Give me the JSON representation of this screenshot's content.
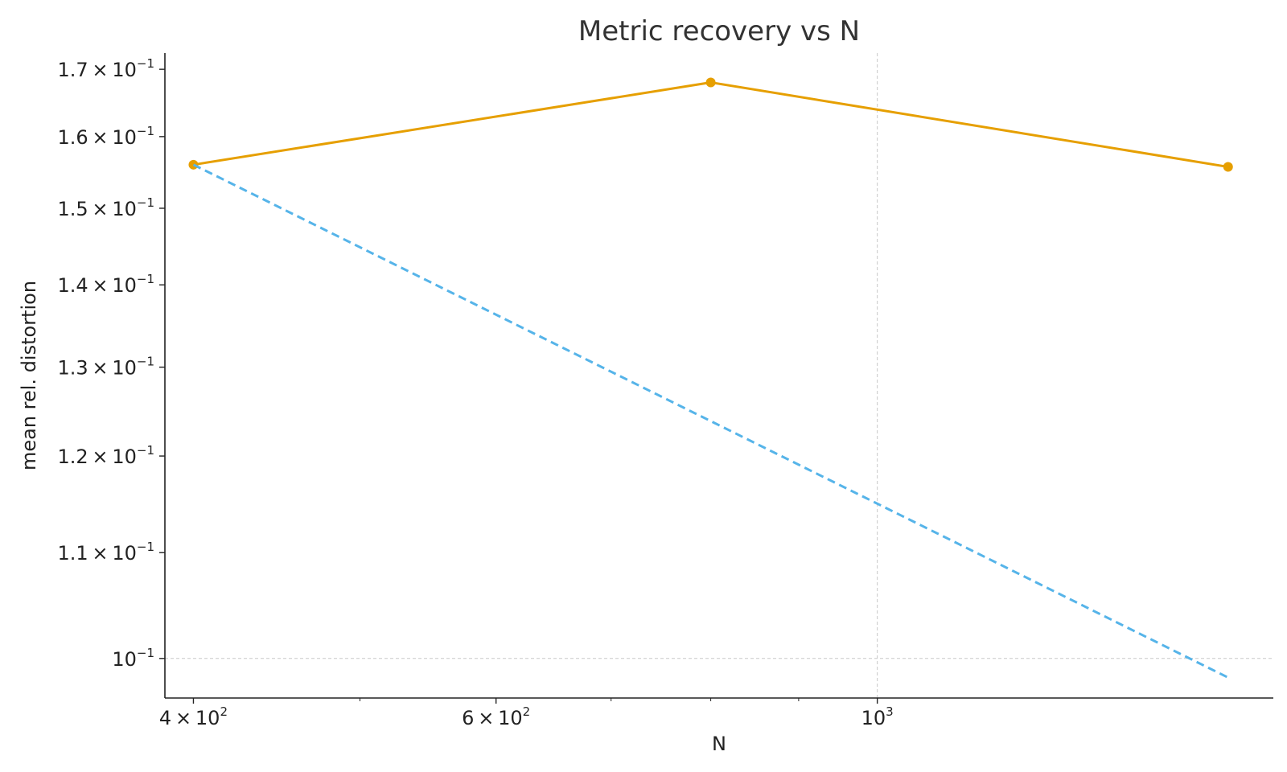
{
  "chart_data": {
    "type": "line",
    "title": "Metric recovery vs N",
    "xlabel": "N",
    "ylabel": "mean rel. distortion",
    "xscale": "log",
    "yscale": "log",
    "xlim": [
      385,
      1700
    ],
    "ylim": [
      0.0965,
      0.1725
    ],
    "grid": "major only, dashed",
    "legend": "none",
    "x_ticks": [
      {
        "value": 400,
        "mantissa": "4",
        "base": "10",
        "exp": "2"
      },
      {
        "value": 600,
        "mantissa": "6",
        "base": "10",
        "exp": "2"
      },
      {
        "value": 1000,
        "mantissa": "",
        "base": "10",
        "exp": "3"
      }
    ],
    "y_ticks": [
      {
        "value": 0.17,
        "mantissa": "1.7",
        "base": "10",
        "exp": "−1"
      },
      {
        "value": 0.16,
        "mantissa": "1.6",
        "base": "10",
        "exp": "−1"
      },
      {
        "value": 0.15,
        "mantissa": "1.5",
        "base": "10",
        "exp": "−1"
      },
      {
        "value": 0.14,
        "mantissa": "1.4",
        "base": "10",
        "exp": "−1"
      },
      {
        "value": 0.13,
        "mantissa": "1.3",
        "base": "10",
        "exp": "−1"
      },
      {
        "value": 0.12,
        "mantissa": "1.2",
        "base": "10",
        "exp": "−1"
      },
      {
        "value": 0.11,
        "mantissa": "1.1",
        "base": "10",
        "exp": "−1"
      },
      {
        "value": 0.1,
        "mantissa": "",
        "base": "10",
        "exp": "−1"
      }
    ],
    "series": [
      {
        "x": [
          400,
          800,
          1600
        ],
        "y": [
          0.156,
          0.168,
          0.1557
        ],
        "color": "#E69F00",
        "style": "solid",
        "markers": true
      },
      {
        "x": [
          400,
          1600
        ],
        "y": [
          0.156,
          0.0983
        ],
        "color": "#56B4E9",
        "style": "dashed",
        "markers": false
      }
    ]
  }
}
